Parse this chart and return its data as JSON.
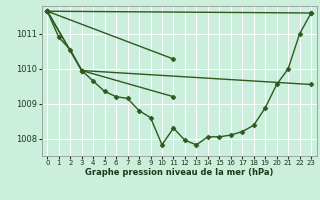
{
  "xlabel": "Graphe pression niveau de la mer (hPa)",
  "background_color": "#cceedd",
  "grid_color": "#ffffff",
  "line_color": "#2d5a1e",
  "marker": "D",
  "markersize": 2.5,
  "linewidth": 1.0,
  "ylim": [
    1007.5,
    1011.8
  ],
  "xlim": [
    -0.5,
    23.5
  ],
  "yticks": [
    1008,
    1009,
    1010,
    1011
  ],
  "xticks": [
    0,
    1,
    2,
    3,
    4,
    5,
    6,
    7,
    8,
    9,
    10,
    11,
    12,
    13,
    14,
    15,
    16,
    17,
    18,
    19,
    20,
    21,
    22,
    23
  ],
  "line1_x": [
    0,
    1,
    2,
    3,
    4,
    5,
    6,
    7,
    8,
    9,
    10,
    11,
    12,
    13,
    14,
    15,
    16,
    17,
    18,
    19,
    20,
    21,
    22,
    23
  ],
  "line1_y": [
    1011.65,
    1010.9,
    1010.55,
    1009.95,
    1009.65,
    1009.35,
    1009.2,
    1009.15,
    1008.8,
    1008.6,
    1007.82,
    1008.3,
    1007.95,
    1007.82,
    1008.05,
    1008.05,
    1008.1,
    1008.2,
    1008.38,
    1008.88,
    1009.55,
    1010.0,
    1011.0,
    1011.6
  ],
  "line2_x": [
    0,
    3,
    11
  ],
  "line2_y": [
    1011.65,
    1009.95,
    1009.2
  ],
  "line3_x": [
    0,
    3,
    11
  ],
  "line3_y": [
    1011.65,
    1009.95,
    1010.28
  ],
  "line4_x": [
    0,
    3,
    11,
    23
  ],
  "line4_y": [
    1011.65,
    1009.95,
    1010.28,
    1011.6
  ],
  "line5_x": [
    0,
    1,
    2,
    3
  ],
  "line5_y": [
    1011.65,
    1011.0,
    1010.55,
    1009.95
  ]
}
